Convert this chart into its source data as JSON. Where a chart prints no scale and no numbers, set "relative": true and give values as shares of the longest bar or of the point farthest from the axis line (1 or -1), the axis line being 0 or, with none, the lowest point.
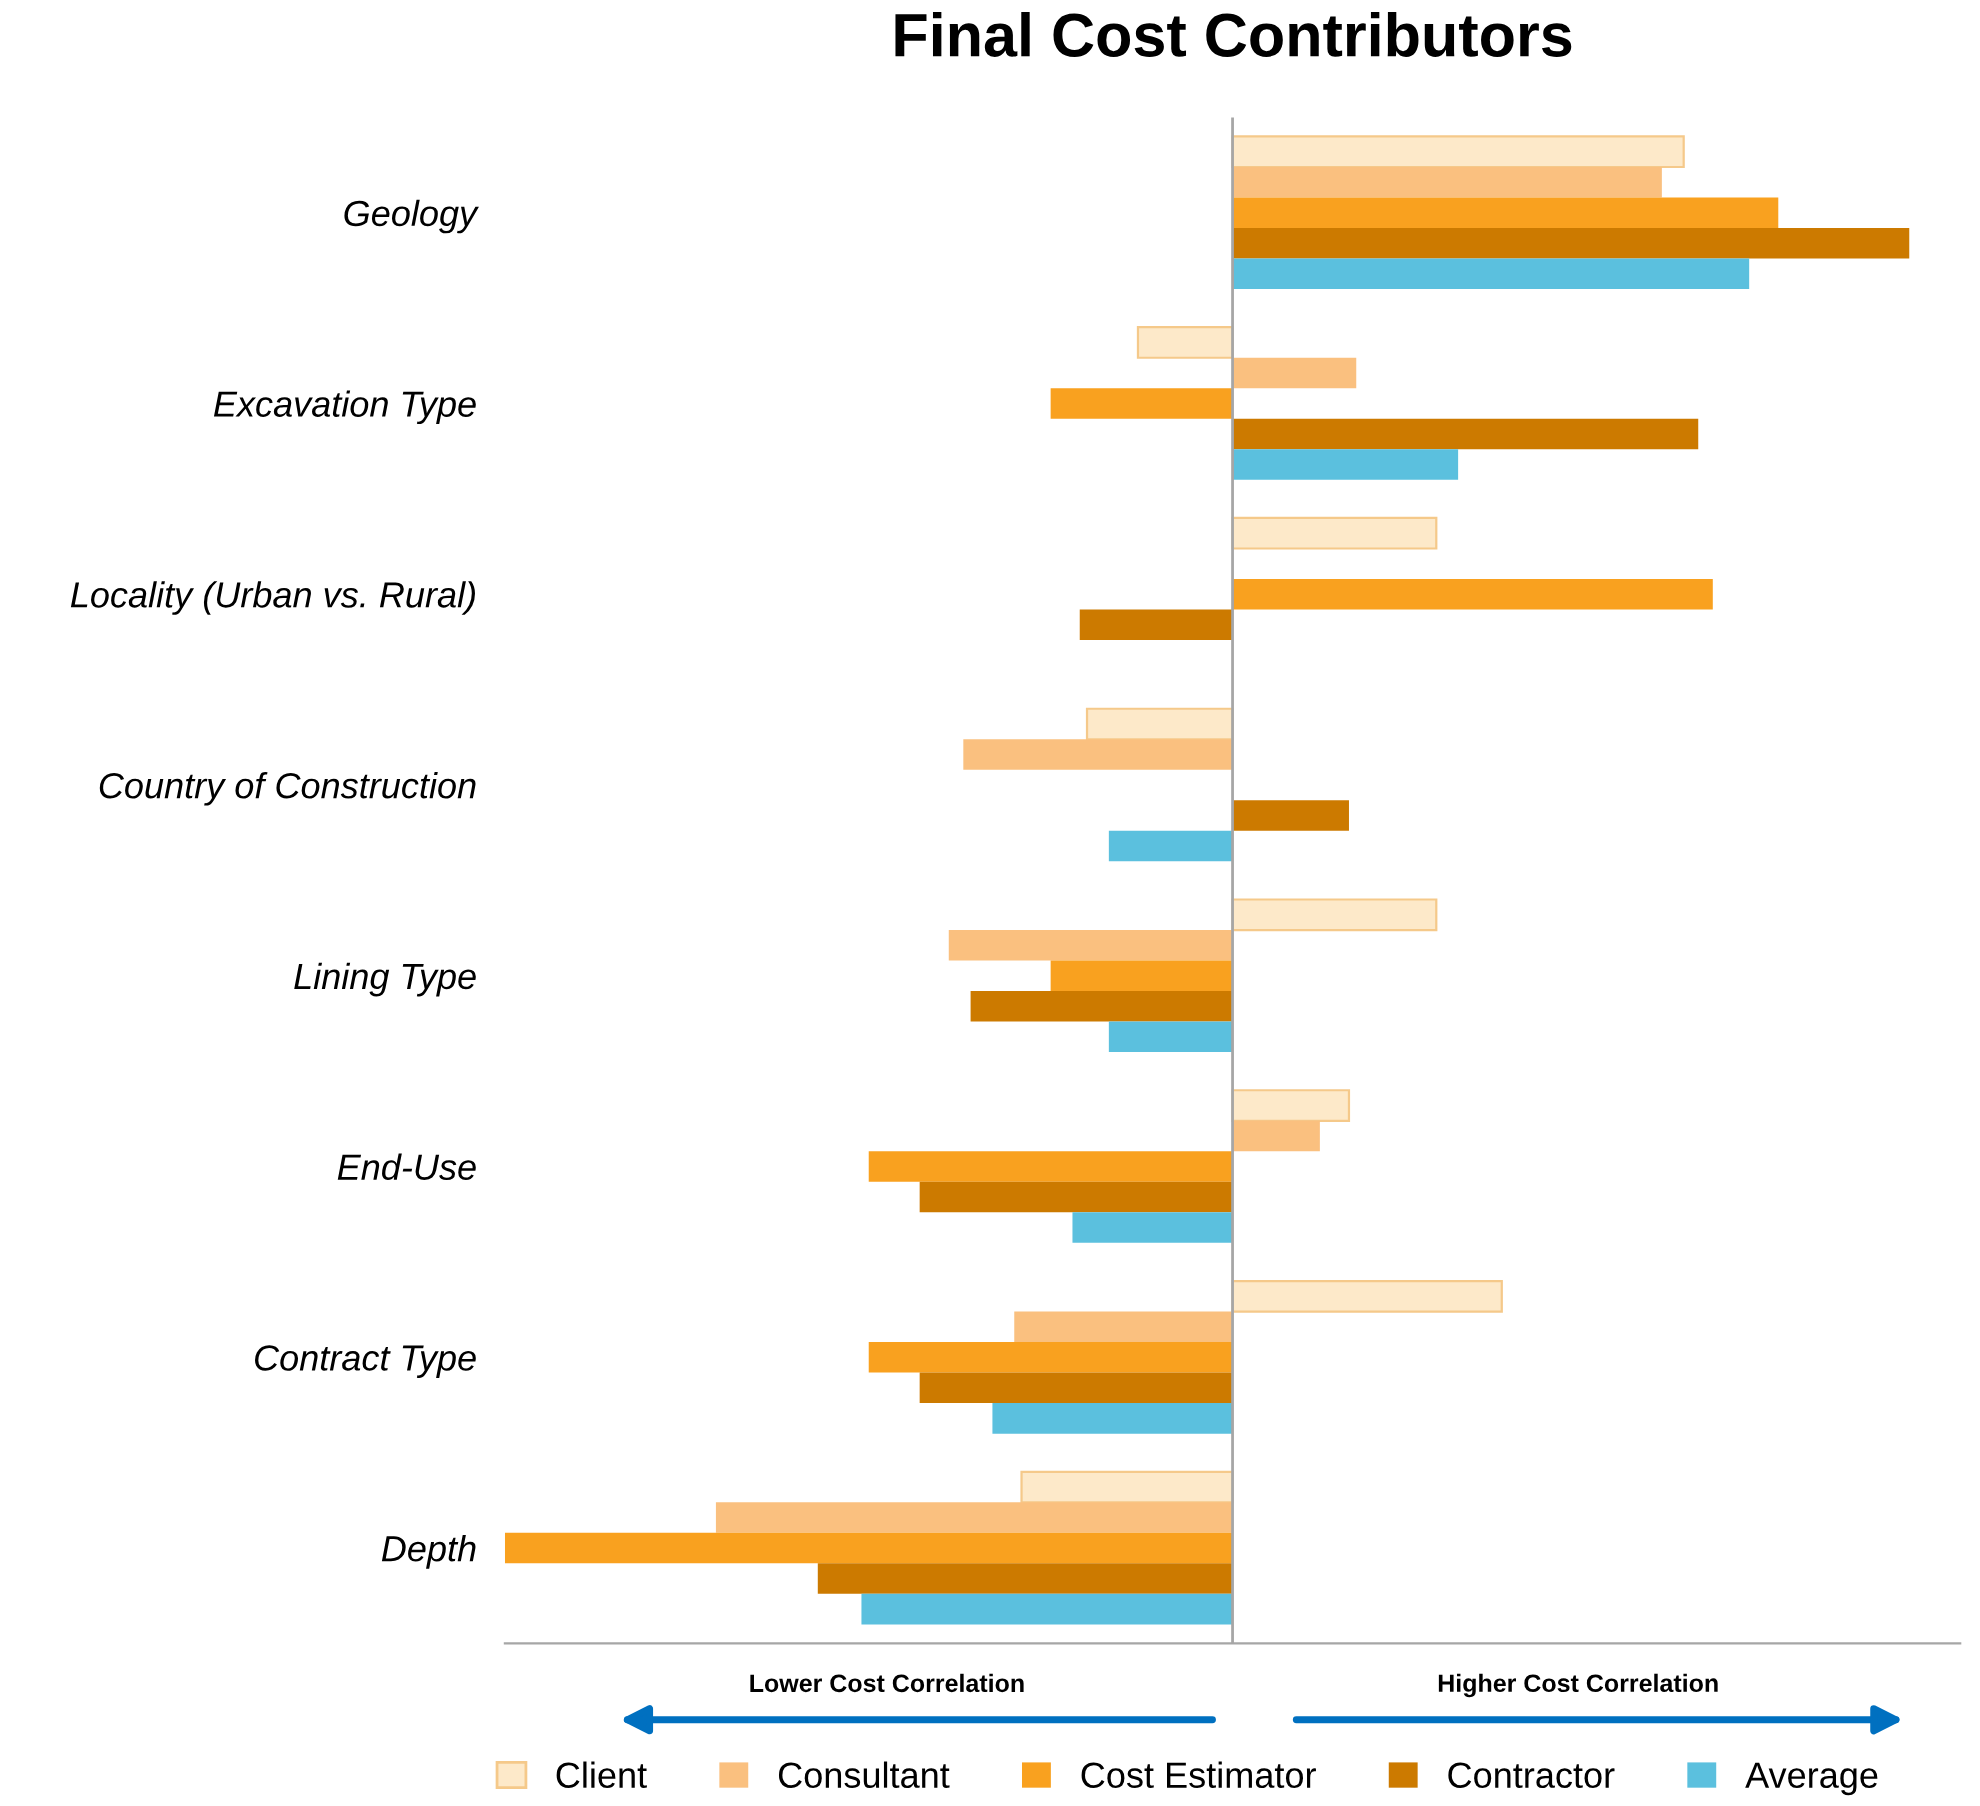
{
  "chart_data": {
    "type": "bar",
    "orientation": "horizontal",
    "relative": true,
    "title": "Final Cost Contributors",
    "categories": [
      "Geology",
      "Excavation Type",
      "Locality (Urban vs. Rural)",
      "Country of Construction",
      "Lining Type",
      "End-Use",
      "Contract Type",
      "Depth"
    ],
    "series": [
      {
        "name": "Client",
        "color": "#fde9c9",
        "values": [
          0.62,
          -0.13,
          0.28,
          -0.2,
          0.28,
          0.16,
          0.37,
          -0.29
        ]
      },
      {
        "name": "Consultant",
        "color": "#fac07f",
        "values": [
          0.59,
          0.17,
          0,
          -0.37,
          -0.39,
          0.12,
          -0.3,
          -0.71
        ]
      },
      {
        "name": "Cost Estimator",
        "color": "#f9a11f",
        "values": [
          0.75,
          -0.25,
          0.66,
          0,
          -0.25,
          -0.5,
          -0.5,
          -1
        ]
      },
      {
        "name": "Contractor",
        "color": "#cc7a00",
        "values": [
          0.93,
          0.64,
          -0.21,
          0.16,
          -0.36,
          -0.43,
          -0.43,
          -0.57
        ]
      },
      {
        "name": "Average",
        "color": "#5bc0de",
        "values": [
          0.71,
          0.31,
          0,
          -0.17,
          -0.17,
          -0.22,
          -0.33,
          -0.51
        ]
      }
    ],
    "annotations": [
      "Lower Cost Correlation",
      "Higher Cost Correlation"
    ],
    "legend": "bottom",
    "grid": false
  }
}
